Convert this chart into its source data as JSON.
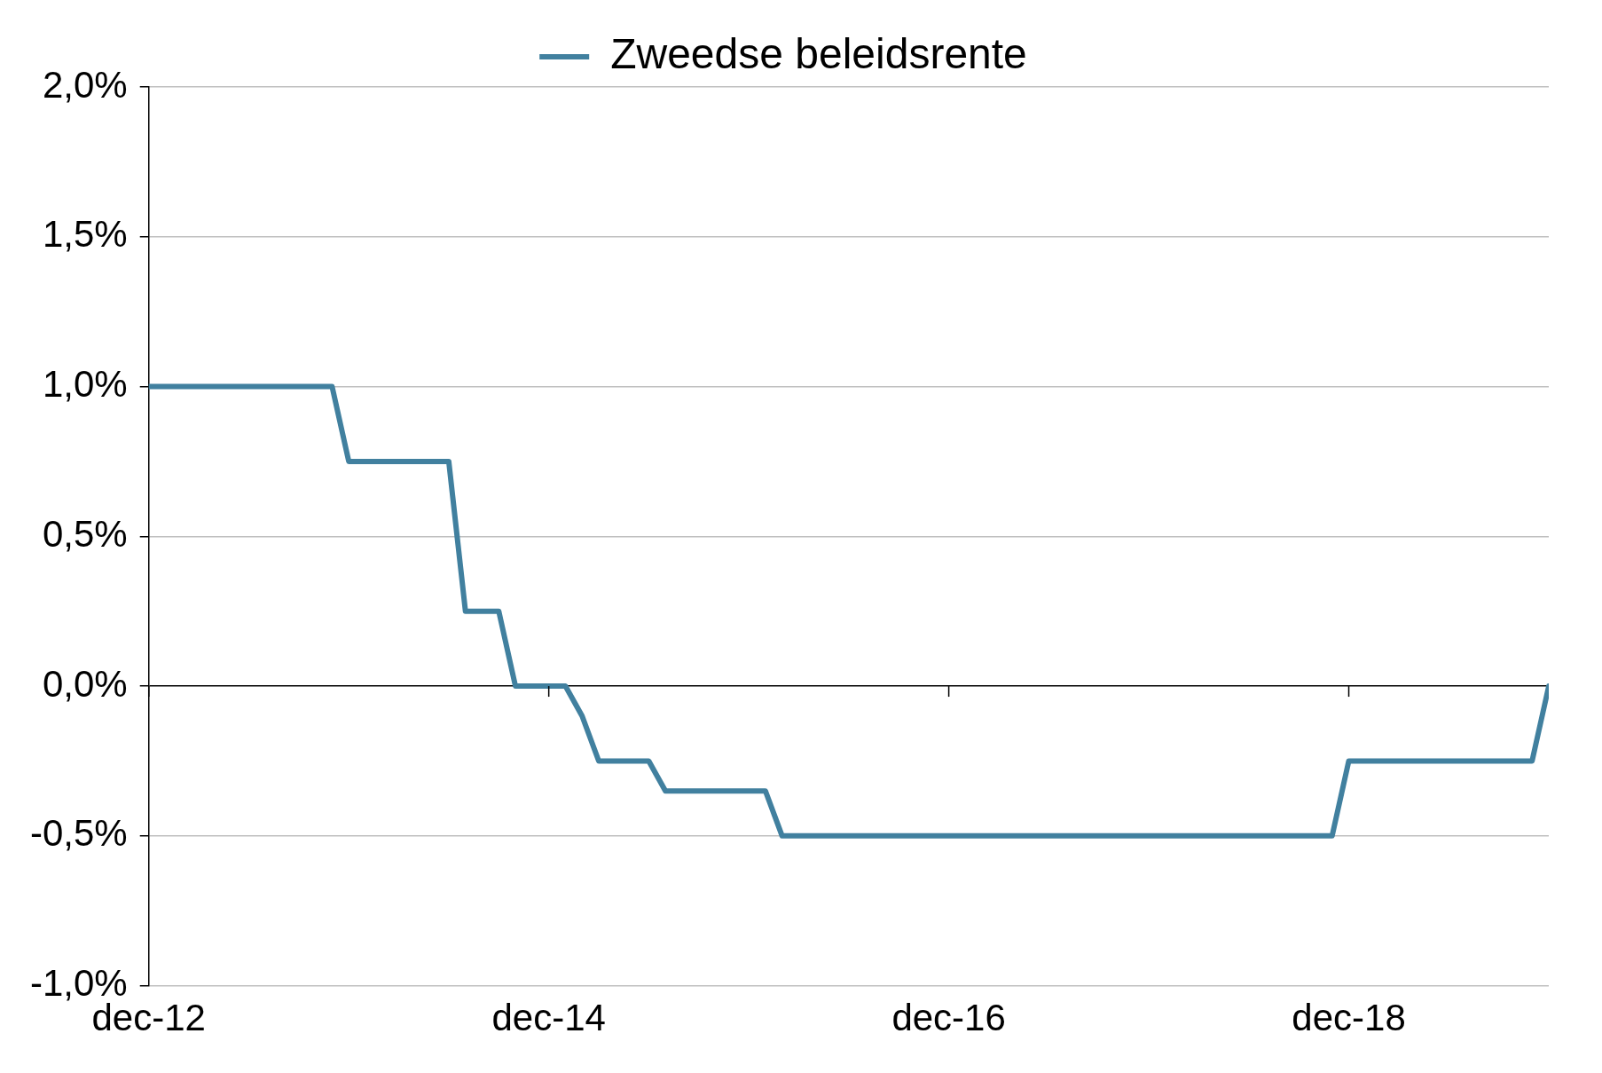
{
  "chart_data": {
    "type": "line",
    "x": [
      "2012-12",
      "2013-11",
      "2013-12",
      "2014-06",
      "2014-07",
      "2014-09",
      "2014-10",
      "2015-01",
      "2015-02",
      "2015-03",
      "2015-06",
      "2015-07",
      "2016-01",
      "2016-02",
      "2018-11",
      "2018-12",
      "2019-11",
      "2019-12"
    ],
    "series": [
      {
        "name": "Zweedse beleidsrente",
        "color": "#41809f",
        "values": [
          1.0,
          1.0,
          0.75,
          0.75,
          0.25,
          0.25,
          0,
          0,
          -0.1,
          -0.25,
          -0.25,
          -0.35,
          -0.35,
          -0.5,
          -0.5,
          -0.25,
          -0.25,
          0
        ]
      }
    ],
    "xlim": [
      "2012-12",
      "2019-12"
    ],
    "xticks": [
      {
        "value": "2012-12",
        "label": "dec-12"
      },
      {
        "value": "2014-12",
        "label": "dec-14"
      },
      {
        "value": "2016-12",
        "label": "dec-16"
      },
      {
        "value": "2018-12",
        "label": "dec-18"
      }
    ],
    "ylim": [
      -1,
      2
    ],
    "yticks": [
      {
        "value": -1,
        "label": "-1,0%"
      },
      {
        "value": -0.5,
        "label": "-0,5%"
      },
      {
        "value": 0,
        "label": "0,0%"
      },
      {
        "value": 0.5,
        "label": "0,5%"
      },
      {
        "value": 1,
        "label": "1,0%"
      },
      {
        "value": 1.5,
        "label": "1,5%"
      },
      {
        "value": 2,
        "label": "2,0%"
      }
    ],
    "grid": "y",
    "legend": "top",
    "marker": "none",
    "line_style": "solid"
  }
}
